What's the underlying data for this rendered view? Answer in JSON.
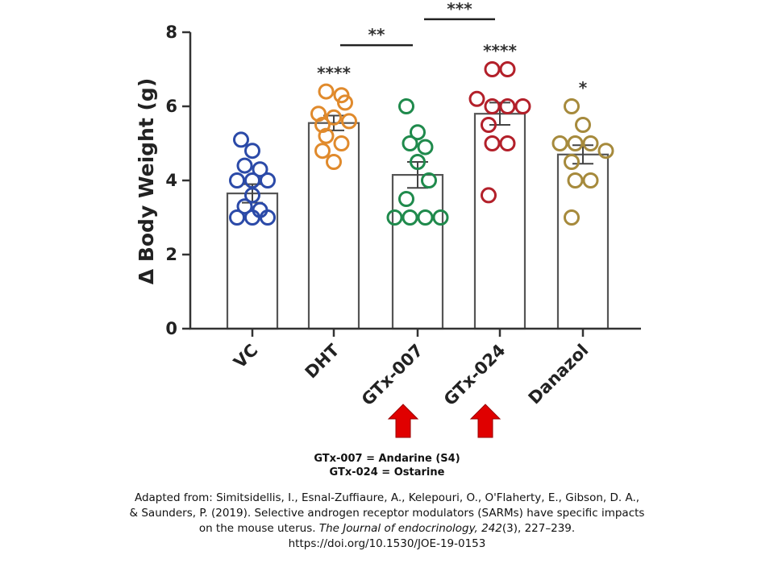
{
  "chart_data": {
    "type": "bar",
    "ylabel": "Δ Body Weight (g)",
    "ylim": [
      0,
      8
    ],
    "yticks": [
      "0",
      "2",
      "4",
      "6",
      "8"
    ],
    "categories": [
      "VC",
      "DHT",
      "GTx-007",
      "GTx-024",
      "Danazol"
    ],
    "means": [
      3.65,
      5.55,
      4.15,
      5.8,
      4.7
    ],
    "sem": [
      0.25,
      0.2,
      0.35,
      0.3,
      0.25
    ],
    "points": [
      [
        5.1,
        4.8,
        4.4,
        4.3,
        4.0,
        4.0,
        4.0,
        3.6,
        3.3,
        3.2,
        3.0,
        3.0,
        3.0
      ],
      [
        6.4,
        6.3,
        6.1,
        5.8,
        5.7,
        5.6,
        5.5,
        5.2,
        5.0,
        4.8,
        4.5
      ],
      [
        6.0,
        5.3,
        5.0,
        4.9,
        4.5,
        4.0,
        3.5,
        3.0,
        3.0,
        3.0,
        3.0
      ],
      [
        7.0,
        7.0,
        6.2,
        6.0,
        6.0,
        6.0,
        5.5,
        5.0,
        5.0,
        3.6
      ],
      [
        6.0,
        5.5,
        5.0,
        5.0,
        5.0,
        4.8,
        4.5,
        4.0,
        4.0,
        3.0
      ]
    ],
    "colors": [
      "#2b4aa8",
      "#e08a2c",
      "#1f8a4c",
      "#b3202a",
      "#a68a3c"
    ],
    "significance": [
      "",
      "****",
      "",
      "****",
      "*"
    ],
    "comparisons": [
      {
        "from": 1,
        "to": 2,
        "label": "**",
        "y": 7.65
      },
      {
        "from": 2,
        "to": 3,
        "label": "***",
        "y": 8.35
      }
    ],
    "arrows_under": [
      2,
      3
    ],
    "arrow_color": "#e00000"
  },
  "legend": {
    "line1": "GTx-007 = Andarine (S4)",
    "line2": "GTx-024 = Ostarine"
  },
  "citation": {
    "pre": "Adapted from: Simitsidellis, I., Esnal-Zuffiaure, A., Kelepouri, O., O'Flaherty, E., Gibson, D. A., & Saunders, P. (2019). Selective androgen receptor modulators (SARMs) have specific impacts on the mouse uterus.",
    "journal": "The Journal of endocrinology, 242",
    "issue": "(3), 227–239. https://doi.org/10.1530/JOE-19-0153"
  }
}
